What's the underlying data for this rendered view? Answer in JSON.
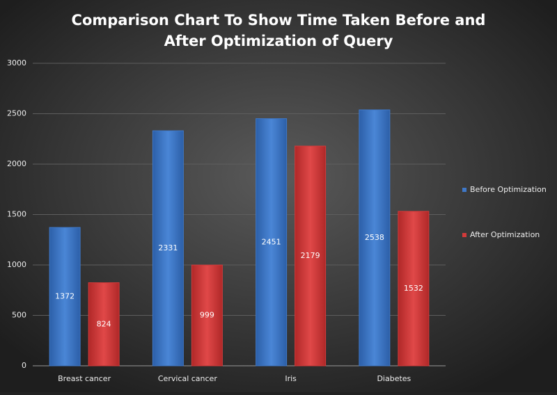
{
  "chart_data": {
    "type": "bar",
    "title": [
      "Comparison Chart To Show Time Taken Before and",
      "After Optimization of Query"
    ],
    "categories": [
      "Breast cancer",
      "Cervical cancer",
      "Iris",
      "Diabetes"
    ],
    "series": [
      {
        "name": "Before Optimization",
        "color": "#3f78c8",
        "values": [
          1372,
          2331,
          2451,
          2538
        ]
      },
      {
        "name": "After Optimization",
        "color": "#d23a3a",
        "values": [
          824,
          999,
          2179,
          1532
        ]
      }
    ],
    "ylim": [
      0,
      3000
    ],
    "yticks": [
      0,
      500,
      1000,
      1500,
      2000,
      2500,
      3000
    ],
    "grid": true,
    "legend": "right"
  }
}
